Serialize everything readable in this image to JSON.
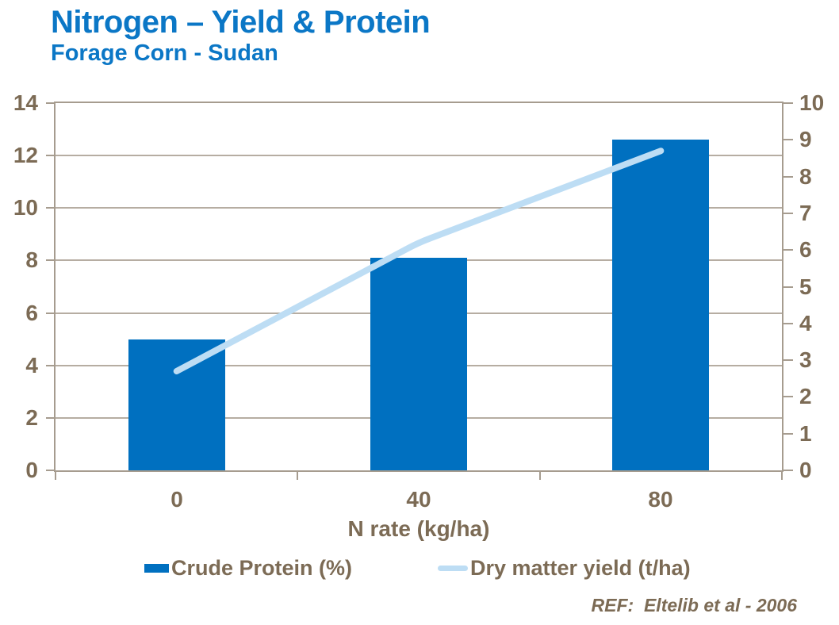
{
  "header": {
    "title": "Nitrogen – Yield & Protein",
    "subtitle": "Forage Corn - Sudan"
  },
  "footer": {
    "reference": "REF:  Eltelib et al - 2006"
  },
  "colors": {
    "title": "#0B77C6",
    "bar": "#0070C0",
    "line": "#BDDDF4",
    "axis_text": "#7C6B55",
    "gridline": "#B6ADA2",
    "frame": "#A69C8F",
    "background": "#FFFFFF"
  },
  "chart_data": {
    "type": "combo",
    "categories": [
      "0",
      "40",
      "80"
    ],
    "series": [
      {
        "name": "Crude Protein (%)",
        "type": "bar",
        "axis": "left",
        "values": [
          5.0,
          8.1,
          12.6
        ]
      },
      {
        "name": "Dry matter yield (t/ha)",
        "type": "line",
        "axis": "right",
        "values": [
          2.7,
          6.2,
          8.7
        ]
      }
    ],
    "xlabel": "N rate (kg/ha)",
    "axes": {
      "left": {
        "min": 0,
        "max": 14,
        "step": 2
      },
      "right": {
        "min": 0,
        "max": 10,
        "step": 1
      }
    },
    "grid": true,
    "legend_position": "bottom"
  }
}
